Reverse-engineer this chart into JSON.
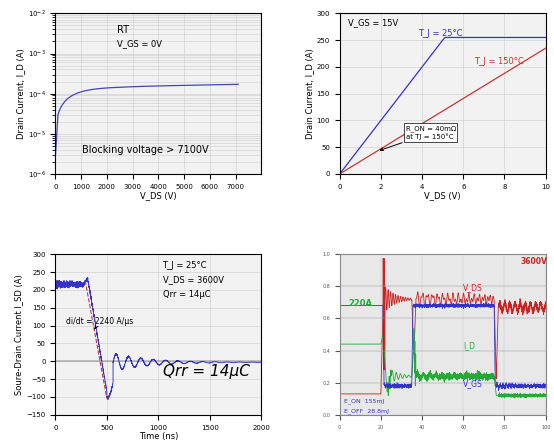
{
  "plot1": {
    "xlabel": "V_DS (V)",
    "ylabel": "Drain Current, I_D (A)",
    "anno_rt": "RT",
    "anno_vgs": "V_GS = 0V",
    "anno_blocking": "Blocking voltage > 7100V",
    "xmin": 0,
    "xmax": 8000,
    "ymin": 1e-06,
    "ymax": 0.01,
    "line_color": "#4444bb",
    "xticks": [
      0,
      1000,
      2000,
      3000,
      4000,
      5000,
      6000,
      7000
    ]
  },
  "plot2": {
    "xlabel": "V_DS (V)",
    "ylabel": "Drain Current, I_D (A)",
    "anno_vgs": "V_GS = 15V",
    "anno_tj25": "T_J = 25°C",
    "anno_tj150": "T_J = 150°C",
    "anno_ron": "R_ON = 40mΩ\nat TJ = 150°C",
    "xmin": 0,
    "xmax": 10,
    "ymin": 0,
    "ymax": 300,
    "yticks": [
      0,
      50,
      100,
      150,
      200,
      250,
      300
    ],
    "line_color_blue": "#3333cc",
    "line_color_red": "#cc3333"
  },
  "plot3": {
    "xlabel": "Time (ns)",
    "ylabel": "Soure-Drain Current I_SD (A)",
    "anno_tj": "T_J = 25°C",
    "anno_vds": "V_DS = 3600V",
    "anno_qrr_small": "Qrr = 14μC",
    "anno_didt": "di/dt = 2240 A/μs",
    "anno_qrr_large": "Qrr = 14μC",
    "xmin": 0,
    "xmax": 2000,
    "ymin": -150,
    "ymax": 300,
    "xticks": [
      0,
      500,
      1000,
      1500,
      2000
    ],
    "yticks": [
      -150,
      -100,
      -50,
      0,
      50,
      100,
      150,
      200,
      250,
      300
    ],
    "line_color": "#3333cc",
    "dashed_color": "#cc3333"
  },
  "plot4": {
    "anno_3600v": "3600V",
    "anno_220a": "220A",
    "anno_vds": "V_DS",
    "anno_id": "I_D",
    "anno_vgs": "V_GS",
    "anno_eon": "E_ON  155mJ",
    "anno_eoff": "E_OFF  28.8mJ",
    "color_vds": "#cc2222",
    "color_id": "#22aa33",
    "color_vgs": "#3333cc",
    "bg_color": "#e8e8e8"
  },
  "grid_color": "#cccccc",
  "plot_bg": "#f2f2f2"
}
